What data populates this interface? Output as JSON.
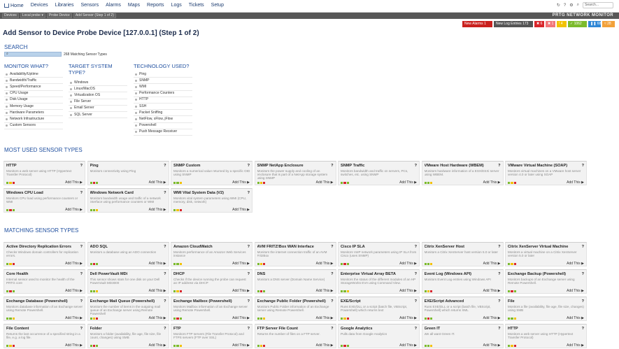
{
  "nav": {
    "items": [
      "Home",
      "Devices",
      "Libraries",
      "Sensors",
      "Alarms",
      "Maps",
      "Reports",
      "Logs",
      "Tickets",
      "Setup"
    ],
    "search_placeholder": "Search..."
  },
  "breadcrumbs": [
    "Devices",
    "Local probe ▾",
    "Probe Device",
    "Add Sensor (Step 1 of 2)"
  ],
  "brand": "PRTG NETWORK MONITOR",
  "status_bar": {
    "new_alarms_label": "New Alarms",
    "new_alarms_count": "1",
    "new_log_label": "New Log Entries",
    "new_log_count": "173",
    "counts": [
      "6",
      "1",
      "4",
      "1062",
      "68",
      "28"
    ],
    "colors": [
      "#d9262b",
      "#f2777a",
      "#f2c200",
      "#7cbb2c",
      "#2f87d6",
      "#f2a13a"
    ]
  },
  "page_title": "Add Sensor to Device Probe Device [127.0.0.1] (Step 1 of 2)",
  "search": {
    "title": "SEARCH",
    "value": "",
    "match_count": "268 Matching Sensor Types"
  },
  "filters": {
    "monitor_what": {
      "title": "MONITOR WHAT?",
      "items": [
        "Availability/Uptime",
        "Bandwidth/Traffic",
        "Speed/Performance",
        "CPU Usage",
        "Disk Usage",
        "Memory Usage",
        "Hardware Parameters",
        "Network Infrastructure",
        "Custom Sensors"
      ]
    },
    "target_system": {
      "title_line1": "TARGET SYSTEM",
      "title_line2": "TYPE?",
      "items": [
        "Windows",
        "Linux/MacOS",
        "Virtualization OS",
        "File Server",
        "Email Server",
        "SQL Server"
      ]
    },
    "technology": {
      "title": "TECHNOLOGY USED?",
      "items": [
        "Ping",
        "SNMP",
        "WMI",
        "Performance Counters",
        "HTTP",
        "SSH",
        "Packet Sniffing",
        "NetFlow, sFlow, jFlow",
        "Powershell",
        "Push Message Receiver"
      ]
    }
  },
  "most_used": {
    "title": "MOST USED SENSOR TYPES",
    "cards": [
      {
        "title": "HTTP",
        "desc": "Monitors a web server using HTTP (Hypertext Transfer Protocol)",
        "add": "Add This ▶"
      },
      {
        "title": "Ping",
        "desc": "Monitors connectivity using Ping",
        "add": "Add This ▶"
      },
      {
        "title": "SNMP Custom",
        "desc": "Monitors a numerical value returned by a specific OID using SNMP",
        "add": "Add This ▶"
      },
      {
        "title": "SNMP NetApp Enclosure",
        "desc": "Monitors the power supply and cooling of an enclosure that is part of a NetApp storage system using SNMP",
        "add": "Add This ▶"
      },
      {
        "title": "SNMP Traffic",
        "desc": "Monitors bandwidth and traffic on servers, PCs, switches, etc. using SNMP",
        "add": "Add This ▶"
      },
      {
        "title": "VMware Host Hardware (WBEM)",
        "desc": "Monitors hardware information of a ESX/ESXi server using WBEM.",
        "add": "Add This ▶"
      },
      {
        "title": "VMware Virtual Machine (SOAP)",
        "desc": "Monitors virtual machines on a VMware host server version 4.0 or later using SOAP",
        "add": "Add This ▶"
      },
      {
        "title": "Windows CPU Load",
        "desc": "Monitors CPU load using performance counters or WMI",
        "add": "Add This ▶"
      },
      {
        "title": "Windows Network Card",
        "desc": "Monitors bandwidth usage and traffic of a network interface using performance counters or WMI",
        "add": "Add This ▶"
      },
      {
        "title": "WMI Vital System Data (V2)",
        "desc": "Monitors vital system parameters using WMI (CPU, memory, disk, network)",
        "add": "Add This ▶"
      }
    ]
  },
  "matching": {
    "title": "MATCHING SENSOR TYPES",
    "cards": [
      {
        "title": "Active Directory Replication Errors",
        "desc": "Checks Windows domain controllers for replication errors.",
        "add": "Add This ▶"
      },
      {
        "title": "ADO SQL",
        "desc": "Monitors a database using an ADO connection",
        "add": "Add This ▶"
      },
      {
        "title": "Amazon CloudWatch",
        "desc": "Monitors performance of an Amazon Web Services instance",
        "add": "Add This ▶"
      },
      {
        "title": "AVM FRITZ!Box WAN Interface",
        "desc": "Monitors the internet connection traffic of an AVM FritzBox",
        "add": "Add This ▶"
      },
      {
        "title": "Cisco IP SLA",
        "desc": "Monitors VoIP network parameters using IP SLA from Cisco (uses SNMP)",
        "add": "Add This ▶"
      },
      {
        "title": "Citrix XenServer Host",
        "desc": "Monitors a Citrix XenServer host version 5.0 or later",
        "add": "Add This ▶"
      },
      {
        "title": "Citrix XenServer Virtual Machine",
        "desc": "Monitors a virtual machine on a Citrix XenServer version 5.0 or later",
        "add": "Add This ▶"
      },
      {
        "title": "Core Health",
        "desc": "Internal sensor used to monitor the health of the PRTG core",
        "add": "Add This ▶"
      },
      {
        "title": "Dell PowerVault MDi",
        "desc": "This sensor shows stats for one disk on your Dell PowerVault MD3000",
        "add": "Add This ▶"
      },
      {
        "title": "DHCP",
        "desc": "Checks if the device running the probe can request an IP address via DHCP",
        "add": "Add This ▶"
      },
      {
        "title": "DNS",
        "desc": "Monitors a DNS server (Domain Name Service)",
        "add": "Add This ▶"
      },
      {
        "title": "Enterprise Virtual Array BETA",
        "desc": "Monitors the status of the different modules of an HP StorageWorks EVA using Command View.",
        "add": "Add This ▶"
      },
      {
        "title": "Event Log (Windows API)",
        "desc": "Monitors Event Log entries using Windows API",
        "add": "Add This ▶"
      },
      {
        "title": "Exchange Backup (Powershell)",
        "desc": "Monitors backups of an Exchange server using Remote Powershell.",
        "add": "Add This ▶"
      },
      {
        "title": "Exchange Database (Powershell)",
        "desc": "Monitors database information of an Exchange server using Remote Powershell.",
        "add": "Add This ▶"
      },
      {
        "title": "Exchange Mail Queue (Powershell)",
        "desc": "Monitors the number of items in the outgoing mail queue of an Exchange server using Remote Powershell",
        "add": "Add This ▶"
      },
      {
        "title": "Exchange Mailbox (Powershell)",
        "desc": "Monitors Mailbox information of an Exchange server using Remote Powershell.",
        "add": "Add This ▶"
      },
      {
        "title": "Exchange Public Folder (Powershell)",
        "desc": "Monitors Public Folder information of an Exchange server using Remote Powershell.",
        "add": "Add This ▶"
      },
      {
        "title": "EXE/Script",
        "desc": "Runs EXE/DLL or a script (batch file, VBScript, Powershell) which returns text",
        "add": "Add This ▶"
      },
      {
        "title": "EXE/Script Advanced",
        "desc": "Runs EXE/DLL or a script (batch file, VBScript, Powershell) which returns XML",
        "add": "Add This ▶"
      },
      {
        "title": "File",
        "desc": "Monitors a file (availability, file age, file size, changes) using SMB",
        "add": "Add This ▶"
      },
      {
        "title": "File Content",
        "desc": "Returns the last occurrence of a specified string in a file, e.g. a log file.",
        "add": "Add This ▶"
      },
      {
        "title": "Folder",
        "desc": "Monitors a folder (availability, file age, file size, file count, changes) using SMB",
        "add": "Add This ▶"
      },
      {
        "title": "FTP",
        "desc": "Monitors FTP servers (File Transfer Protocol) and FTPS servers (FTP over SSL)",
        "add": "Add This ▶"
      },
      {
        "title": "FTP Server File Count",
        "desc": "Returns the number of files on a FTP server.",
        "add": "Add This ▶"
      },
      {
        "title": "Google Analytics",
        "desc": "Pulls data from Google Analytics",
        "add": "Add This ▶"
      },
      {
        "title": "Green IT",
        "desc": "We all want Green IT.",
        "add": "Add This ▶"
      },
      {
        "title": "HTTP",
        "desc": "Monitors a web server using HTTP (Hypertext Transfer Protocol)",
        "add": "Add This ▶"
      }
    ]
  },
  "question_mark": "?"
}
